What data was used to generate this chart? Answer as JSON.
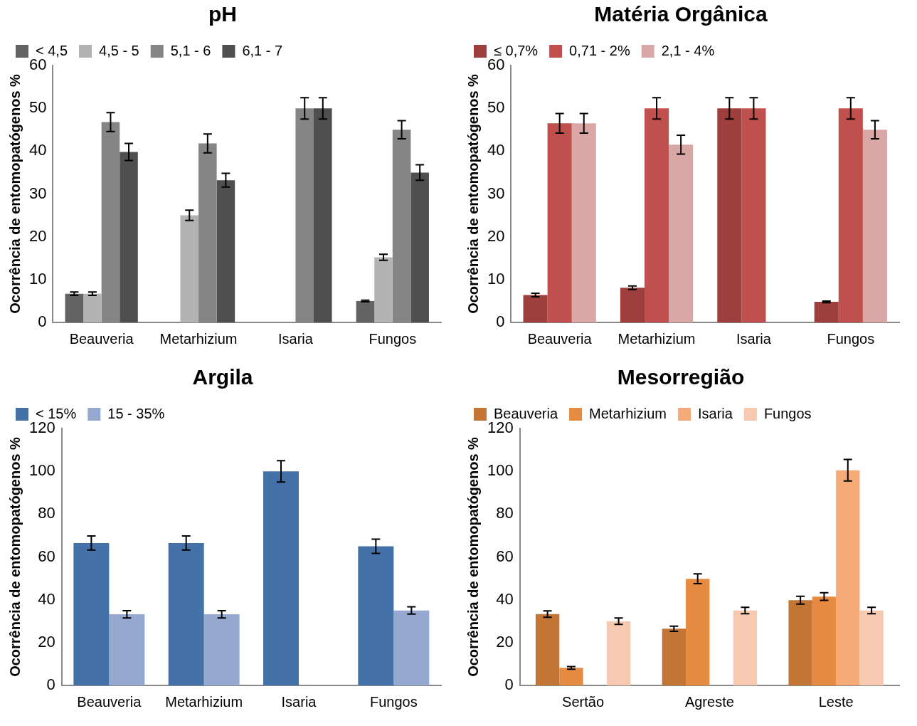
{
  "chart_data": [
    {
      "type": "bar",
      "title": "pH",
      "ylabel": "Ocorrência de entomopatógenos %",
      "categories": [
        "Beauveria",
        "Metarhizium",
        "Isaria",
        "Fungos"
      ],
      "ylim": [
        0,
        60
      ],
      "yticks": [
        0,
        10,
        20,
        30,
        40,
        50,
        60
      ],
      "legend": "top",
      "series": [
        {
          "name": "< 4,5",
          "color": "#636363",
          "values": [
            6.7,
            null,
            null,
            5
          ],
          "errors": [
            0.4,
            null,
            null,
            0.2
          ]
        },
        {
          "name": "4,5 - 5",
          "color": "#b3b3b3",
          "values": [
            6.7,
            25,
            null,
            15.2
          ],
          "errors": [
            0.4,
            1.2,
            null,
            0.7
          ]
        },
        {
          "name": "5,1 - 6",
          "color": "#858585",
          "values": [
            46.8,
            41.8,
            50,
            45
          ],
          "errors": [
            2.2,
            2.2,
            2.5,
            2.1
          ]
        },
        {
          "name": "6,1 - 7",
          "color": "#4f4f4f",
          "values": [
            39.8,
            33.2,
            50,
            35
          ],
          "errors": [
            2,
            1.6,
            2.5,
            1.8
          ]
        }
      ]
    },
    {
      "type": "bar",
      "title": "Matéria Orgânica",
      "ylabel": "Ocorrência de entomopatógenos %",
      "categories": [
        "Beauveria",
        "Metarhizium",
        "Isaria",
        "Fungos"
      ],
      "ylim": [
        0,
        60
      ],
      "yticks": [
        0,
        10,
        20,
        30,
        40,
        50,
        60
      ],
      "legend": "top",
      "series": [
        {
          "name": "≤ 0,7%",
          "color": "#9e3f3d",
          "values": [
            6.4,
            8.1,
            50,
            4.8
          ],
          "errors": [
            0.4,
            0.4,
            2.5,
            0.2
          ]
        },
        {
          "name": "0,71 - 2%",
          "color": "#c0504d",
          "values": [
            46.5,
            50,
            50,
            50
          ],
          "errors": [
            2.3,
            2.5,
            2.5,
            2.5
          ]
        },
        {
          "name": "2,1 - 4%",
          "color": "#d9a7a6",
          "values": [
            46.5,
            41.5,
            null,
            45
          ],
          "errors": [
            2.3,
            2.2,
            null,
            2.1
          ]
        }
      ]
    },
    {
      "type": "bar",
      "title": "Argila",
      "ylabel": "Ocorrência de entomopatógenos %",
      "categories": [
        "Beauveria",
        "Metarhizium",
        "Isaria",
        "Fungos"
      ],
      "ylim": [
        0,
        120
      ],
      "yticks": [
        0,
        20,
        40,
        60,
        80,
        100,
        120
      ],
      "legend": "top",
      "series": [
        {
          "name": "< 15%",
          "color": "#4472a8",
          "values": [
            66.5,
            66.5,
            100,
            65
          ],
          "errors": [
            3.3,
            3.3,
            5,
            3.3
          ]
        },
        {
          "name": "15 - 35%",
          "color": "#95a9d0",
          "values": [
            33.2,
            33.2,
            null,
            35
          ],
          "errors": [
            1.7,
            1.7,
            null,
            1.7
          ]
        }
      ]
    },
    {
      "type": "bar",
      "title": "Mesorregião",
      "ylabel": "Ocorrência de entomopatógenos %",
      "categories": [
        "Sertão",
        "Agreste",
        "Leste"
      ],
      "ylim": [
        0,
        120
      ],
      "yticks": [
        0,
        20,
        40,
        60,
        80,
        100,
        120
      ],
      "legend": "top",
      "series": [
        {
          "name": "Beauveria",
          "color": "#c27535",
          "values": [
            33.3,
            26.5,
            39.8
          ],
          "errors": [
            1.5,
            1.2,
            1.8
          ]
        },
        {
          "name": "Metarhizium",
          "color": "#e68c42",
          "values": [
            8.2,
            49.8,
            41.5
          ],
          "errors": [
            0.6,
            2.3,
            1.8
          ]
        },
        {
          "name": "Isaria",
          "color": "#f5aa78",
          "values": [
            null,
            null,
            100.5
          ],
          "errors": [
            null,
            null,
            5
          ]
        },
        {
          "name": "Fungos",
          "color": "#f8c9b1",
          "values": [
            30,
            35,
            35
          ],
          "errors": [
            1.5,
            1.5,
            1.5
          ]
        }
      ]
    }
  ]
}
